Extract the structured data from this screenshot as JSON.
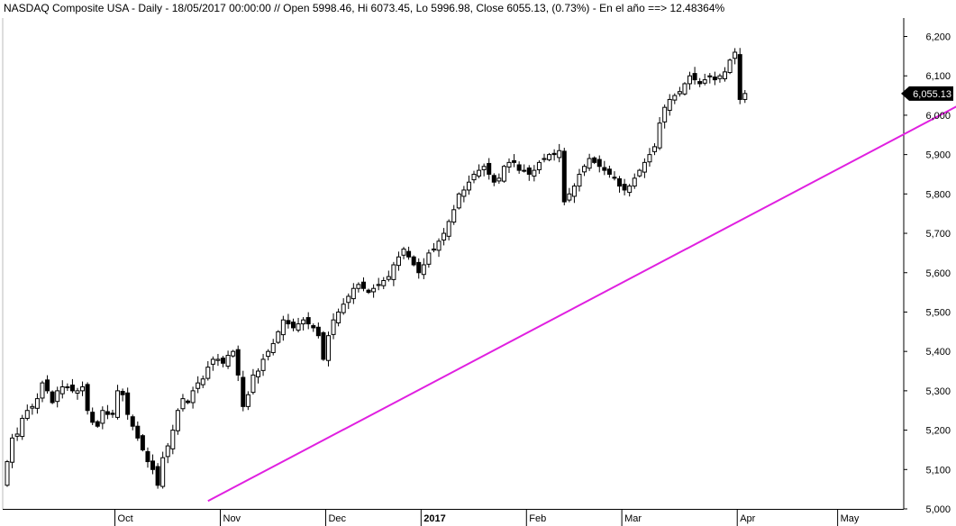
{
  "header": {
    "title": "NASDAQ Composite USA - Daily - 18/05/2017 00:00:00 // Open 5998.46, Hi 6073.45, Lo 5996.98, Close 6055.13, (0.73%) - En el año ==> 12.48364%"
  },
  "chart_data": {
    "type": "candlestick",
    "title": "NASDAQ Composite USA - Daily - 18/05/2017 00:00:00 // Open 5998.46, Hi 6073.45, Lo 5996.98, Close 6055.13, (0.73%) - En el año ==> 12.48364%",
    "ylim": [
      5000,
      6240
    ],
    "y_ticks": [
      5000,
      5100,
      5200,
      5300,
      5400,
      5500,
      5600,
      5700,
      5800,
      5900,
      6000,
      6100,
      6200
    ],
    "y_tick_labels": [
      "5,000",
      "5,100",
      "5,200",
      "5,300",
      "5,400",
      "5,500",
      "5,600",
      "5,700",
      "5,800",
      "5,900",
      "6,000",
      "6,100",
      "6,200"
    ],
    "x_month_labels": [
      {
        "label": "Oct",
        "index": 22,
        "bold": false
      },
      {
        "label": "Nov",
        "index": 43,
        "bold": false
      },
      {
        "label": "Dec",
        "index": 64,
        "bold": false
      },
      {
        "label": "2017",
        "index": 83,
        "bold": true
      },
      {
        "label": "Feb",
        "index": 104,
        "bold": false
      },
      {
        "label": "Mar",
        "index": 123,
        "bold": false
      },
      {
        "label": "Apr",
        "index": 146,
        "bold": false
      },
      {
        "label": "May",
        "index": 166,
        "bold": false
      }
    ],
    "last_price_label": "6,055.13",
    "last_price": 6055.13,
    "trendline": {
      "start_index": 40,
      "start_value": 5020,
      "end_index": 189,
      "end_value": 6025,
      "color": "#e020e0"
    },
    "closes": [
      5120,
      5180,
      5190,
      5230,
      5250,
      5260,
      5280,
      5320,
      5300,
      5270,
      5300,
      5310,
      5310,
      5300,
      5300,
      5310,
      5250,
      5220,
      5210,
      5250,
      5240,
      5240,
      5300,
      5290,
      5240,
      5210,
      5180,
      5150,
      5120,
      5100,
      5060,
      5130,
      5160,
      5200,
      5250,
      5280,
      5270,
      5300,
      5320,
      5330,
      5360,
      5380,
      5380,
      5370,
      5390,
      5400,
      5340,
      5260,
      5290,
      5340,
      5350,
      5380,
      5400,
      5420,
      5450,
      5480,
      5470,
      5460,
      5470,
      5480,
      5470,
      5460,
      5440,
      5380,
      5440,
      5480,
      5500,
      5520,
      5540,
      5560,
      5570,
      5560,
      5550,
      5560,
      5570,
      5580,
      5590,
      5620,
      5640,
      5660,
      5640,
      5620,
      5600,
      5620,
      5650,
      5660,
      5680,
      5700,
      5730,
      5760,
      5800,
      5810,
      5830,
      5850,
      5860,
      5870,
      5850,
      5830,
      5840,
      5870,
      5880,
      5880,
      5860,
      5860,
      5850,
      5860,
      5880,
      5890,
      5900,
      5900,
      5910,
      5780,
      5800,
      5820,
      5850,
      5870,
      5890,
      5880,
      5870,
      5860,
      5850,
      5840,
      5820,
      5810,
      5820,
      5840,
      5860,
      5880,
      5900,
      5920,
      5980,
      6020,
      6040,
      6050,
      6060,
      6080,
      6100,
      6090,
      6080,
      6090,
      6100,
      6090,
      6100,
      6110,
      6140,
      6160,
      6040,
      6055.13
    ],
    "notes": "Daily OHLC candlesticks from late Sep 2016 through 18 May 2017; only the y-axis and the header values are printed, closes are estimated from the price grid."
  }
}
